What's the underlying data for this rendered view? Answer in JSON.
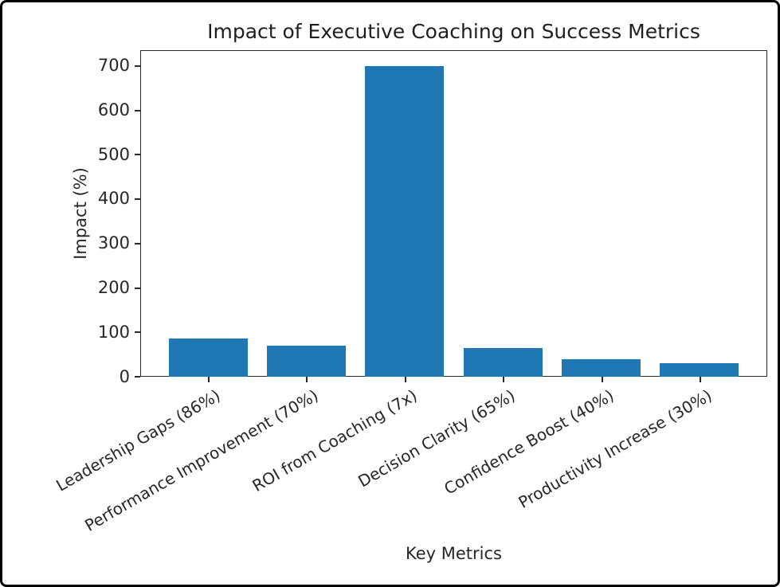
{
  "figure": {
    "background_color": "#ffffff",
    "border_color": "#000000"
  },
  "chart_data": {
    "type": "bar",
    "title": "Impact of Executive Coaching on Success Metrics",
    "xlabel": "Key Metrics",
    "ylabel": "Impact (%)",
    "categories": [
      "Leadership Gaps (86%)",
      "Performance Improvement (70%)",
      "ROI from Coaching (7x)",
      "Decision Clarity (65%)",
      "Confidence Boost (40%)",
      "Productivity Increase (30%)"
    ],
    "values": [
      86,
      70,
      700,
      65,
      40,
      30
    ],
    "yticks": [
      0,
      100,
      200,
      300,
      400,
      500,
      600,
      700
    ],
    "ylim": [
      0,
      735
    ],
    "xtick_rotation_deg": 30,
    "grid": false,
    "legend": "none",
    "bar_color": "#1f77b4",
    "frame_color": "#2b2b2b",
    "text_color": "#262626"
  }
}
